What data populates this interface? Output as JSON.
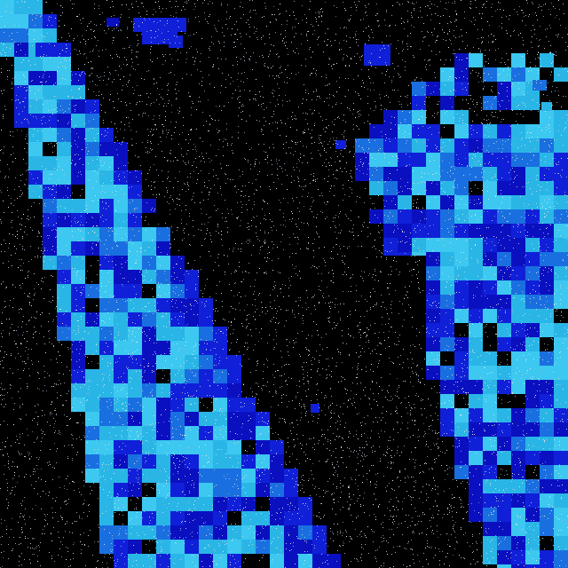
{
  "scene": {
    "description_kind": "abstract pixelated glitch artwork",
    "palette": {
      "background": "#000000",
      "light": "#29b6e6",
      "light_alt": "#3cc8f0",
      "mid": "#1a6fe0",
      "dark": "#1020d8",
      "deep": "#0a10c0",
      "noise": "#e8e8e8"
    }
  }
}
